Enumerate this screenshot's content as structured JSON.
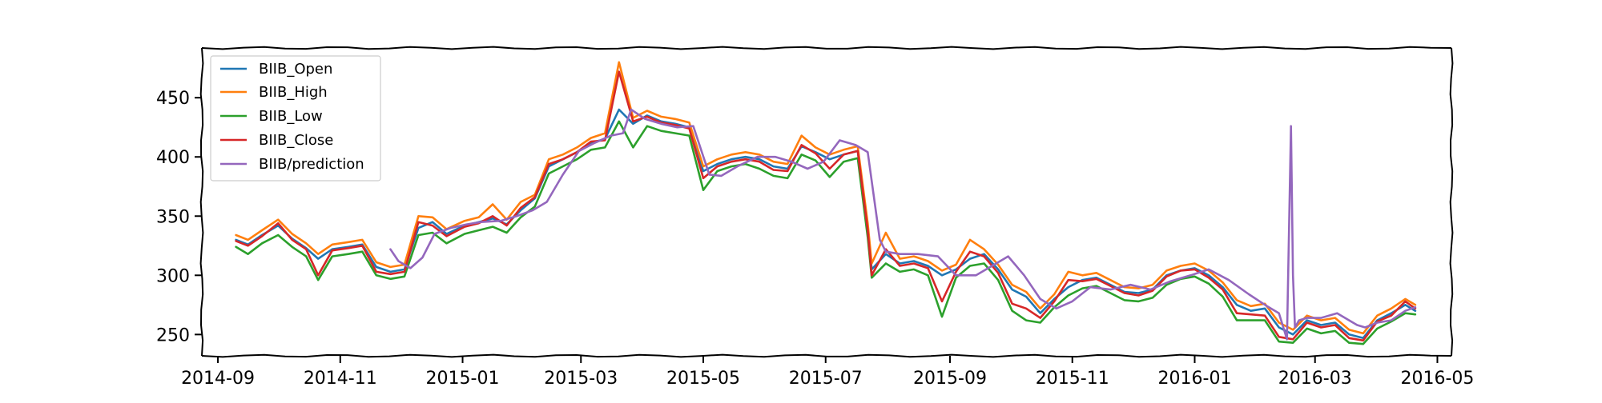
{
  "chart_data": {
    "type": "line",
    "title": "",
    "xlabel": "",
    "ylabel": "",
    "x_axis_type": "date",
    "xlim": [
      "2014-08-24",
      "2016-05-08"
    ],
    "ylim": [
      232,
      492
    ],
    "x_ticks": [
      "2014-09",
      "2014-11",
      "2015-01",
      "2015-03",
      "2015-05",
      "2015-07",
      "2015-09",
      "2015-11",
      "2016-01",
      "2016-03",
      "2016-05"
    ],
    "x_tick_dates": [
      "2014-09-01",
      "2014-11-01",
      "2015-01-01",
      "2015-03-01",
      "2015-05-01",
      "2015-07-01",
      "2015-09-01",
      "2015-11-01",
      "2016-01-01",
      "2016-03-01",
      "2016-05-01"
    ],
    "y_ticks": [
      250,
      300,
      350,
      400,
      450
    ],
    "grid": false,
    "legend_position": "top-left",
    "series": [
      {
        "name": "BIIB_Open",
        "color": "#1f77b4",
        "x": [
          "2014-09-10",
          "2014-09-16",
          "2014-09-23",
          "2014-10-01",
          "2014-10-08",
          "2014-10-15",
          "2014-10-21",
          "2014-10-28",
          "2014-11-05",
          "2014-11-12",
          "2014-11-19",
          "2014-11-26",
          "2014-12-03",
          "2014-12-10",
          "2014-12-17",
          "2014-12-24",
          "2015-01-02",
          "2015-01-09",
          "2015-01-16",
          "2015-01-23",
          "2015-01-30",
          "2015-02-06",
          "2015-02-13",
          "2015-02-20",
          "2015-02-27",
          "2015-03-06",
          "2015-03-13",
          "2015-03-20",
          "2015-03-27",
          "2015-04-03",
          "2015-04-10",
          "2015-04-17",
          "2015-04-24",
          "2015-05-01",
          "2015-05-08",
          "2015-05-15",
          "2015-05-22",
          "2015-05-29",
          "2015-06-05",
          "2015-06-12",
          "2015-06-19",
          "2015-06-26",
          "2015-07-03",
          "2015-07-10",
          "2015-07-17",
          "2015-07-22",
          "2015-07-24",
          "2015-07-31",
          "2015-08-07",
          "2015-08-14",
          "2015-08-21",
          "2015-08-28",
          "2015-09-04",
          "2015-09-11",
          "2015-09-18",
          "2015-09-25",
          "2015-10-02",
          "2015-10-09",
          "2015-10-16",
          "2015-10-23",
          "2015-10-30",
          "2015-11-06",
          "2015-11-13",
          "2015-11-20",
          "2015-11-27",
          "2015-12-04",
          "2015-12-11",
          "2015-12-18",
          "2015-12-25",
          "2016-01-01",
          "2016-01-08",
          "2016-01-15",
          "2016-01-22",
          "2016-01-29",
          "2016-02-05",
          "2016-02-12",
          "2016-02-19",
          "2016-02-26",
          "2016-03-04",
          "2016-03-11",
          "2016-03-18",
          "2016-03-25",
          "2016-04-01",
          "2016-04-08",
          "2016-04-15",
          "2016-04-20"
        ],
        "y": [
          330,
          326,
          334,
          342,
          331,
          323,
          314,
          322,
          324,
          326,
          307,
          303,
          305,
          340,
          345,
          335,
          342,
          345,
          348,
          343,
          355,
          365,
          392,
          398,
          404,
          412,
          415,
          440,
          428,
          435,
          430,
          428,
          425,
          388,
          394,
          398,
          400,
          398,
          392,
          390,
          409,
          404,
          398,
          402,
          405,
          340,
          305,
          318,
          310,
          312,
          308,
          300,
          305,
          314,
          318,
          305,
          288,
          282,
          268,
          280,
          290,
          296,
          298,
          292,
          286,
          285,
          288,
          300,
          304,
          306,
          300,
          290,
          275,
          270,
          272,
          256,
          250,
          262,
          258,
          260,
          250,
          247,
          262,
          268,
          275,
          270
        ]
      },
      {
        "name": "BIIB_High",
        "color": "#ff7f0e",
        "x": [
          "2014-09-10",
          "2014-09-16",
          "2014-09-23",
          "2014-10-01",
          "2014-10-08",
          "2014-10-15",
          "2014-10-21",
          "2014-10-28",
          "2014-11-05",
          "2014-11-12",
          "2014-11-19",
          "2014-11-26",
          "2014-12-03",
          "2014-12-10",
          "2014-12-17",
          "2014-12-24",
          "2015-01-02",
          "2015-01-09",
          "2015-01-16",
          "2015-01-23",
          "2015-01-30",
          "2015-02-06",
          "2015-02-13",
          "2015-02-20",
          "2015-02-27",
          "2015-03-06",
          "2015-03-13",
          "2015-03-20",
          "2015-03-27",
          "2015-04-03",
          "2015-04-10",
          "2015-04-17",
          "2015-04-24",
          "2015-05-01",
          "2015-05-08",
          "2015-05-15",
          "2015-05-22",
          "2015-05-29",
          "2015-06-05",
          "2015-06-12",
          "2015-06-19",
          "2015-06-26",
          "2015-07-03",
          "2015-07-10",
          "2015-07-17",
          "2015-07-22",
          "2015-07-24",
          "2015-07-31",
          "2015-08-07",
          "2015-08-14",
          "2015-08-21",
          "2015-08-28",
          "2015-09-04",
          "2015-09-11",
          "2015-09-18",
          "2015-09-25",
          "2015-10-02",
          "2015-10-09",
          "2015-10-16",
          "2015-10-23",
          "2015-10-30",
          "2015-11-06",
          "2015-11-13",
          "2015-11-20",
          "2015-11-27",
          "2015-12-04",
          "2015-12-11",
          "2015-12-18",
          "2015-12-25",
          "2016-01-01",
          "2016-01-08",
          "2016-01-15",
          "2016-01-22",
          "2016-01-29",
          "2016-02-05",
          "2016-02-12",
          "2016-02-19",
          "2016-02-26",
          "2016-03-04",
          "2016-03-11",
          "2016-03-18",
          "2016-03-25",
          "2016-04-01",
          "2016-04-08",
          "2016-04-15",
          "2016-04-20"
        ],
        "y": [
          334,
          330,
          338,
          347,
          335,
          327,
          318,
          326,
          328,
          330,
          311,
          307,
          309,
          350,
          349,
          339,
          346,
          349,
          360,
          347,
          362,
          368,
          398,
          402,
          408,
          416,
          420,
          480,
          433,
          439,
          434,
          432,
          429,
          392,
          398,
          402,
          404,
          402,
          396,
          394,
          418,
          408,
          402,
          406,
          409,
          344,
          310,
          336,
          314,
          316,
          312,
          304,
          309,
          330,
          322,
          309,
          292,
          286,
          272,
          284,
          303,
          300,
          302,
          296,
          290,
          289,
          292,
          304,
          308,
          310,
          304,
          294,
          279,
          274,
          276,
          260,
          254,
          266,
          262,
          264,
          254,
          251,
          266,
          272,
          280,
          275
        ]
      },
      {
        "name": "BIIB_Low",
        "color": "#2ca02c",
        "x": [
          "2014-09-10",
          "2014-09-16",
          "2014-09-23",
          "2014-10-01",
          "2014-10-08",
          "2014-10-15",
          "2014-10-21",
          "2014-10-28",
          "2014-11-05",
          "2014-11-12",
          "2014-11-19",
          "2014-11-26",
          "2014-12-03",
          "2014-12-10",
          "2014-12-17",
          "2014-12-24",
          "2015-01-02",
          "2015-01-09",
          "2015-01-16",
          "2015-01-23",
          "2015-01-30",
          "2015-02-06",
          "2015-02-13",
          "2015-02-20",
          "2015-02-27",
          "2015-03-06",
          "2015-03-13",
          "2015-03-20",
          "2015-03-27",
          "2015-04-03",
          "2015-04-10",
          "2015-04-17",
          "2015-04-24",
          "2015-05-01",
          "2015-05-08",
          "2015-05-15",
          "2015-05-22",
          "2015-05-29",
          "2015-06-05",
          "2015-06-12",
          "2015-06-19",
          "2015-06-26",
          "2015-07-03",
          "2015-07-10",
          "2015-07-17",
          "2015-07-22",
          "2015-07-24",
          "2015-07-31",
          "2015-08-07",
          "2015-08-14",
          "2015-08-21",
          "2015-08-28",
          "2015-09-04",
          "2015-09-11",
          "2015-09-18",
          "2015-09-25",
          "2015-10-02",
          "2015-10-09",
          "2015-10-16",
          "2015-10-23",
          "2015-10-30",
          "2015-11-06",
          "2015-11-13",
          "2015-11-20",
          "2015-11-27",
          "2015-12-04",
          "2015-12-11",
          "2015-12-18",
          "2015-12-25",
          "2016-01-01",
          "2016-01-08",
          "2016-01-15",
          "2016-01-22",
          "2016-01-29",
          "2016-02-05",
          "2016-02-12",
          "2016-02-19",
          "2016-02-26",
          "2016-03-04",
          "2016-03-11",
          "2016-03-18",
          "2016-03-25",
          "2016-04-01",
          "2016-04-08",
          "2016-04-15",
          "2016-04-20"
        ],
        "y": [
          324,
          318,
          327,
          334,
          324,
          316,
          296,
          316,
          318,
          320,
          300,
          297,
          299,
          334,
          336,
          327,
          335,
          338,
          341,
          336,
          349,
          358,
          386,
          392,
          398,
          406,
          408,
          430,
          408,
          426,
          422,
          420,
          418,
          372,
          388,
          392,
          394,
          390,
          384,
          382,
          402,
          397,
          383,
          396,
          399,
          332,
          298,
          310,
          303,
          305,
          300,
          265,
          298,
          308,
          310,
          296,
          270,
          262,
          260,
          273,
          283,
          289,
          291,
          285,
          279,
          278,
          281,
          292,
          297,
          299,
          293,
          282,
          262,
          262,
          262,
          244,
          243,
          255,
          251,
          253,
          243,
          242,
          255,
          261,
          268,
          267
        ]
      },
      {
        "name": "BIIB_Close",
        "color": "#d62728",
        "x": [
          "2014-09-10",
          "2014-09-16",
          "2014-09-23",
          "2014-10-01",
          "2014-10-08",
          "2014-10-15",
          "2014-10-21",
          "2014-10-28",
          "2014-11-05",
          "2014-11-12",
          "2014-11-19",
          "2014-11-26",
          "2014-12-03",
          "2014-12-10",
          "2014-12-17",
          "2014-12-24",
          "2015-01-02",
          "2015-01-09",
          "2015-01-16",
          "2015-01-23",
          "2015-01-30",
          "2015-02-06",
          "2015-02-13",
          "2015-02-20",
          "2015-02-27",
          "2015-03-06",
          "2015-03-13",
          "2015-03-20",
          "2015-03-27",
          "2015-04-03",
          "2015-04-10",
          "2015-04-17",
          "2015-04-24",
          "2015-05-01",
          "2015-05-08",
          "2015-05-15",
          "2015-05-22",
          "2015-05-29",
          "2015-06-05",
          "2015-06-12",
          "2015-06-19",
          "2015-06-26",
          "2015-07-03",
          "2015-07-10",
          "2015-07-17",
          "2015-07-22",
          "2015-07-24",
          "2015-07-31",
          "2015-08-07",
          "2015-08-14",
          "2015-08-21",
          "2015-08-28",
          "2015-09-04",
          "2015-09-11",
          "2015-09-18",
          "2015-09-25",
          "2015-10-02",
          "2015-10-09",
          "2015-10-16",
          "2015-10-23",
          "2015-10-30",
          "2015-11-06",
          "2015-11-13",
          "2015-11-20",
          "2015-11-27",
          "2015-12-04",
          "2015-12-11",
          "2015-12-18",
          "2015-12-25",
          "2016-01-01",
          "2016-01-08",
          "2016-01-15",
          "2016-01-22",
          "2016-01-29",
          "2016-02-05",
          "2016-02-12",
          "2016-02-19",
          "2016-02-26",
          "2016-03-04",
          "2016-03-11",
          "2016-03-18",
          "2016-03-25",
          "2016-04-01",
          "2016-04-08",
          "2016-04-15",
          "2016-04-20"
        ],
        "y": [
          329,
          325,
          333,
          344,
          330,
          322,
          300,
          321,
          323,
          325,
          303,
          301,
          303,
          345,
          342,
          333,
          341,
          344,
          350,
          342,
          357,
          366,
          394,
          398,
          404,
          413,
          414,
          472,
          430,
          434,
          429,
          427,
          424,
          382,
          392,
          396,
          398,
          396,
          389,
          388,
          410,
          403,
          390,
          402,
          405,
          338,
          300,
          322,
          308,
          310,
          306,
          278,
          303,
          320,
          316,
          302,
          276,
          272,
          264,
          278,
          296,
          295,
          297,
          291,
          285,
          283,
          287,
          299,
          304,
          305,
          298,
          288,
          268,
          267,
          266,
          248,
          246,
          260,
          256,
          258,
          247,
          245,
          261,
          266,
          278,
          272
        ]
      },
      {
        "name": "BIIB/prediction",
        "color": "#9467bd",
        "x": [
          "2014-11-26",
          "2014-11-30",
          "2014-12-06",
          "2014-12-12",
          "2014-12-18",
          "2014-12-26",
          "2015-01-03",
          "2015-01-10",
          "2015-01-20",
          "2015-01-28",
          "2015-02-05",
          "2015-02-12",
          "2015-02-20",
          "2015-02-28",
          "2015-03-08",
          "2015-03-16",
          "2015-03-22",
          "2015-03-26",
          "2015-04-02",
          "2015-04-10",
          "2015-04-18",
          "2015-04-26",
          "2015-05-04",
          "2015-05-10",
          "2015-05-18",
          "2015-05-28",
          "2015-06-06",
          "2015-06-14",
          "2015-06-22",
          "2015-06-30",
          "2015-07-08",
          "2015-07-16",
          "2015-07-22",
          "2015-07-28",
          "2015-07-31",
          "2015-08-07",
          "2015-08-16",
          "2015-08-26",
          "2015-09-04",
          "2015-09-14",
          "2015-09-22",
          "2015-09-30",
          "2015-10-08",
          "2015-10-16",
          "2015-10-24",
          "2015-11-01",
          "2015-11-10",
          "2015-11-20",
          "2015-11-30",
          "2015-12-10",
          "2015-12-20",
          "2015-12-30",
          "2016-01-08",
          "2016-01-18",
          "2016-01-28",
          "2016-02-06",
          "2016-02-12",
          "2016-02-16",
          "2016-02-18",
          "2016-02-19",
          "2016-02-20",
          "2016-02-22",
          "2016-02-26",
          "2016-03-04",
          "2016-03-12",
          "2016-03-18",
          "2016-03-22",
          "2016-03-26",
          "2016-04-01",
          "2016-04-08",
          "2016-04-15",
          "2016-04-20"
        ],
        "y": [
          322,
          312,
          306,
          315,
          335,
          340,
          343,
          345,
          346,
          350,
          355,
          362,
          385,
          405,
          412,
          418,
          420,
          440,
          432,
          428,
          425,
          426,
          385,
          384,
          392,
          400,
          400,
          396,
          390,
          396,
          414,
          410,
          404,
          330,
          320,
          318,
          318,
          316,
          300,
          300,
          308,
          316,
          300,
          280,
          272,
          278,
          290,
          288,
          292,
          288,
          295,
          300,
          305,
          296,
          284,
          274,
          268,
          246,
          426,
          300,
          256,
          262,
          264,
          264,
          268,
          262,
          258,
          256,
          260,
          262,
          270,
          273
        ]
      }
    ]
  }
}
